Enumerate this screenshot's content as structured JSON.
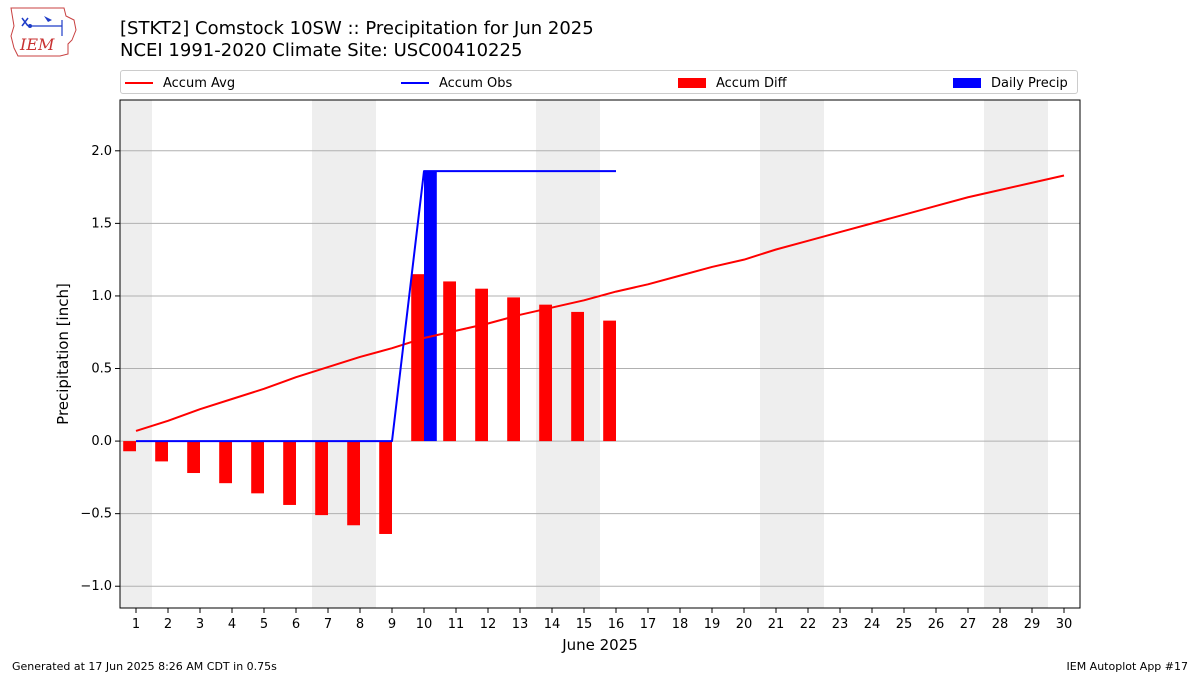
{
  "header": {
    "title_line1": "[STKT2] Comstock 10SW :: Precipitation for Jun 2025",
    "title_line2": "NCEI 1991-2020 Climate Site: USC00410225",
    "logo_text": "IEM"
  },
  "legend": {
    "accum_avg": "Accum Avg",
    "accum_obs": "Accum Obs",
    "accum_diff": "Accum Diff",
    "daily_precip": "Daily Precip"
  },
  "footer": {
    "generated": "Generated at 17 Jun 2025 8:26 AM CDT in 0.75s",
    "app": "IEM Autoplot App #17"
  },
  "colors": {
    "avg": "#ff0000",
    "obs": "#0000ff",
    "diff": "#ff0000",
    "daily": "#0000ff",
    "weekend": "#eeeeee",
    "grid": "#b0b0b0"
  },
  "chart_data": {
    "type": "bar",
    "xlabel": "June 2025",
    "ylabel": "Precipitation [inch]",
    "xlim": [
      0.5,
      30.5
    ],
    "ylim": [
      -1.15,
      2.35
    ],
    "yticks": [
      -1.0,
      -0.5,
      0.0,
      0.5,
      1.0,
      1.5,
      2.0
    ],
    "ytick_labels": [
      "−1.0",
      "−0.5",
      "0.0",
      "0.5",
      "1.0",
      "1.5",
      "2.0"
    ],
    "days": [
      1,
      2,
      3,
      4,
      5,
      6,
      7,
      8,
      9,
      10,
      11,
      12,
      13,
      14,
      15,
      16,
      17,
      18,
      19,
      20,
      21,
      22,
      23,
      24,
      25,
      26,
      27,
      28,
      29,
      30
    ],
    "weekend_days": [
      1,
      7,
      8,
      14,
      15,
      21,
      22,
      28,
      29
    ],
    "grid": "horizontal",
    "legend_position": "top",
    "series": [
      {
        "name": "Accum Avg",
        "kind": "line",
        "x": [
          1,
          2,
          3,
          4,
          5,
          6,
          7,
          8,
          9,
          10,
          11,
          12,
          13,
          14,
          15,
          16,
          17,
          18,
          19,
          20,
          21,
          22,
          23,
          24,
          25,
          26,
          27,
          28,
          29,
          30
        ],
        "values": [
          0.07,
          0.14,
          0.22,
          0.29,
          0.36,
          0.44,
          0.51,
          0.58,
          0.64,
          0.71,
          0.76,
          0.81,
          0.87,
          0.92,
          0.97,
          1.03,
          1.08,
          1.14,
          1.2,
          1.25,
          1.32,
          1.38,
          1.44,
          1.5,
          1.56,
          1.62,
          1.68,
          1.73,
          1.78,
          1.83
        ]
      },
      {
        "name": "Accum Obs",
        "kind": "line",
        "x": [
          1,
          2,
          3,
          4,
          5,
          6,
          7,
          8,
          9,
          10,
          11,
          12,
          13,
          14,
          15,
          16
        ],
        "values": [
          0,
          0,
          0,
          0,
          0,
          0,
          0,
          0,
          0,
          1.86,
          1.86,
          1.86,
          1.86,
          1.86,
          1.86,
          1.86
        ]
      },
      {
        "name": "Accum Diff",
        "kind": "bar",
        "x": [
          1,
          2,
          3,
          4,
          5,
          6,
          7,
          8,
          9,
          10,
          11,
          12,
          13,
          14,
          15,
          16
        ],
        "values": [
          -0.07,
          -0.14,
          -0.22,
          -0.29,
          -0.36,
          -0.44,
          -0.51,
          -0.58,
          -0.64,
          1.15,
          1.1,
          1.05,
          0.99,
          0.94,
          0.89,
          0.83
        ]
      },
      {
        "name": "Daily Precip",
        "kind": "bar",
        "x": [
          10
        ],
        "values": [
          1.86
        ]
      }
    ]
  }
}
